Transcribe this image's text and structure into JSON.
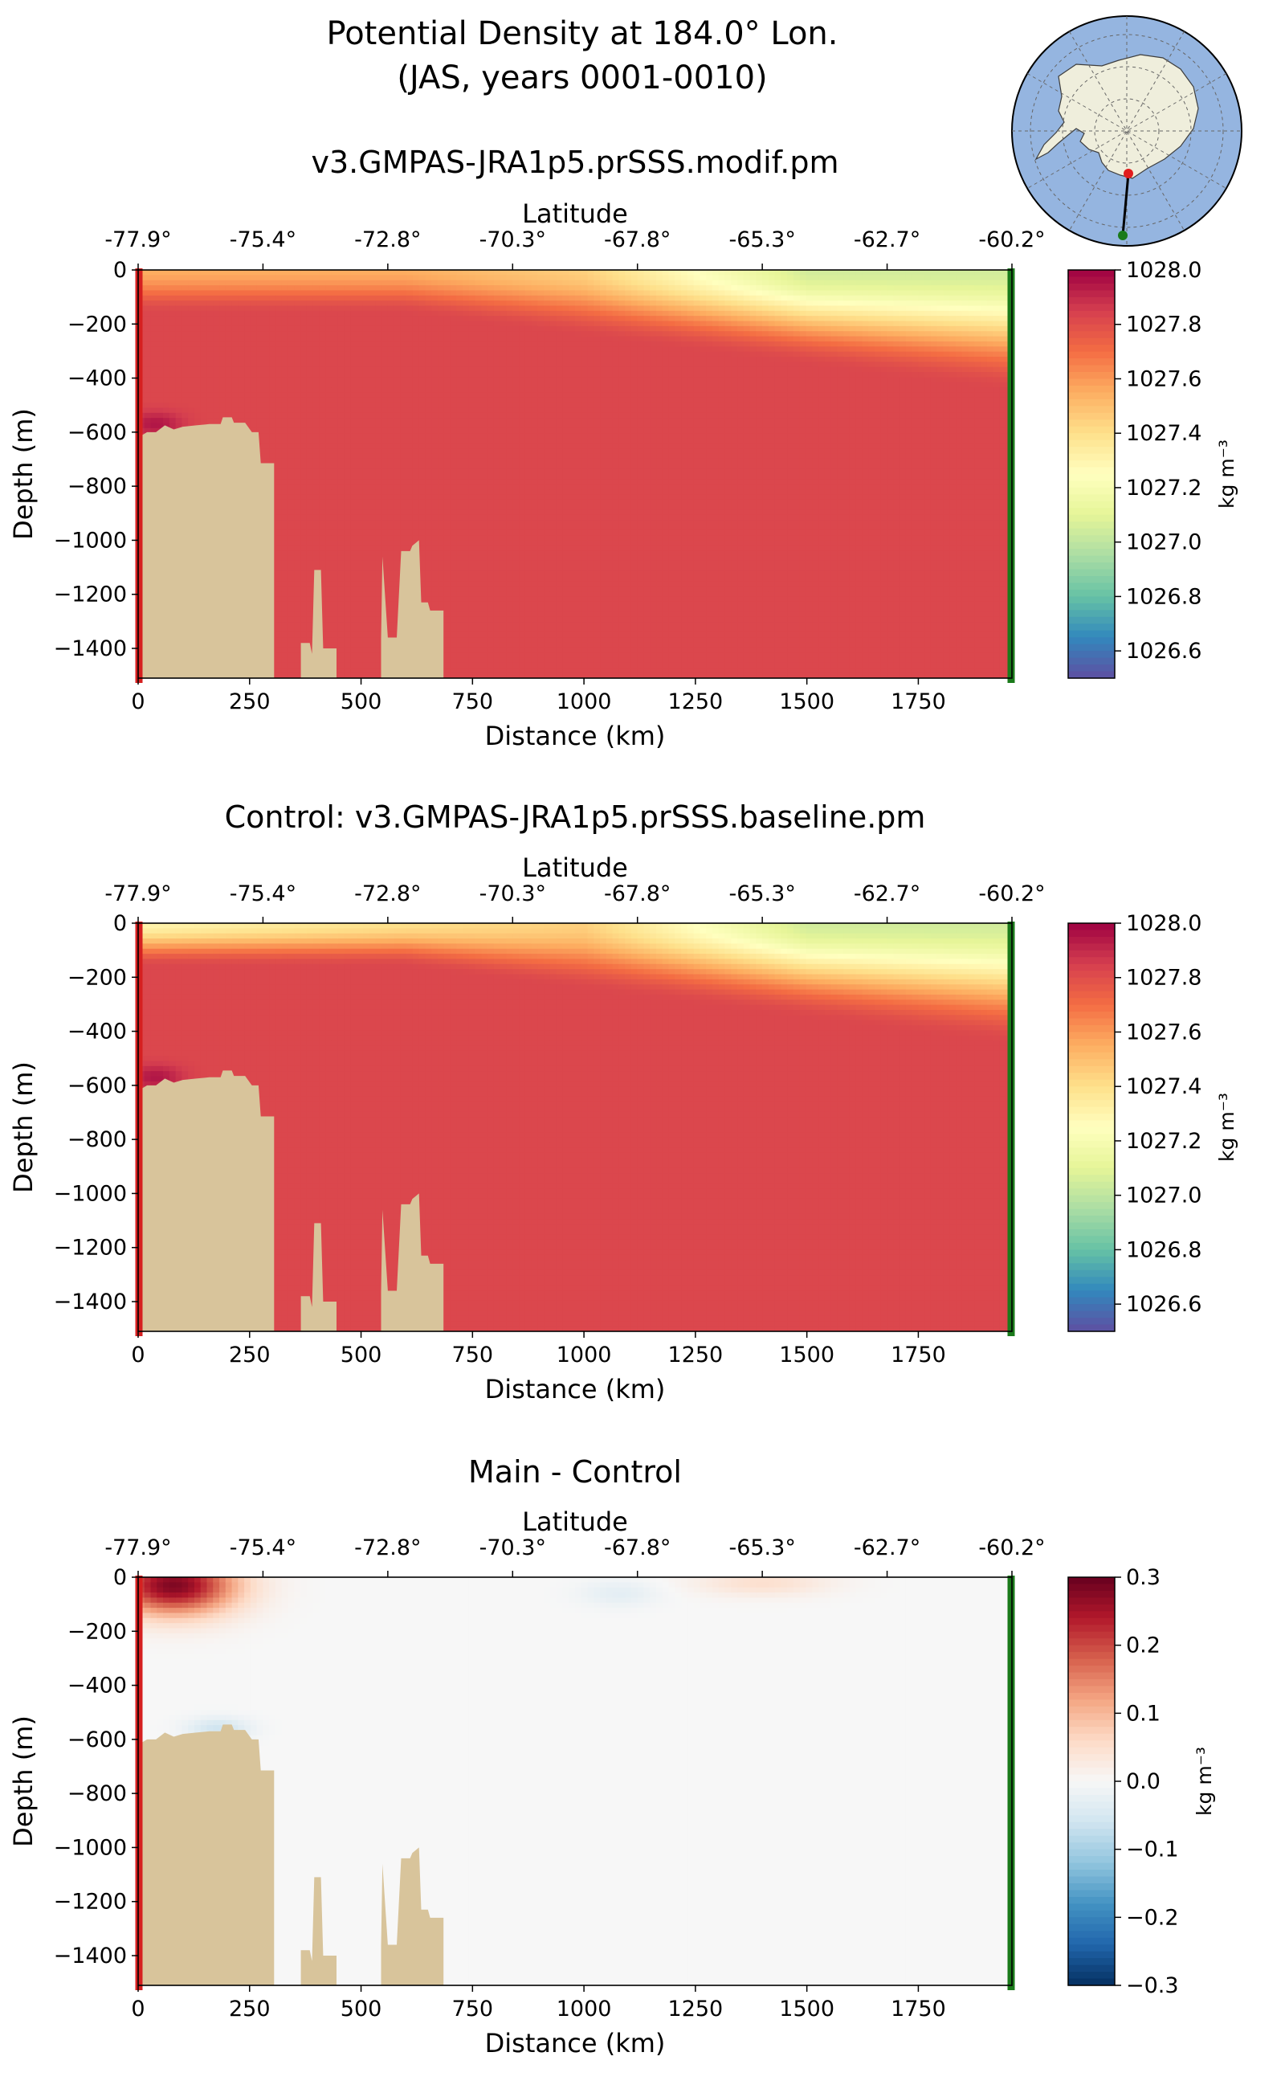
{
  "figure": {
    "title_line1": "Potential Density at 184.0° Lon.",
    "title_line2": "(JAS, years 0001-0010)",
    "land_color": "#d8c49b",
    "start_marker_color": "#d62020",
    "end_marker_color": "#1a7a1a",
    "inset_map": {
      "ocean_color": "#95b5e0",
      "land_color": "#efeedc",
      "section_start_color": "#e11d1d",
      "section_end_color": "#1a7a1a"
    }
  },
  "chart_data": [
    {
      "type": "heatmap",
      "title": "v3.GMPAS-JRA1p5.prSSS.modif.pm",
      "xlabel": "Distance (km)",
      "ylabel": "Depth (m)",
      "top_xlabel": "Latitude",
      "xlim": [
        0,
        1960
      ],
      "ylim": [
        -1510,
        0
      ],
      "x_ticks": [
        0,
        250,
        500,
        750,
        1000,
        1250,
        1500,
        1750
      ],
      "y_ticks": [
        0,
        -200,
        -400,
        -600,
        -800,
        -1000,
        -1200,
        -1400
      ],
      "lat_ticks": [
        {
          "km": 0,
          "label": "-77.9°"
        },
        {
          "km": 280,
          "label": "-75.4°"
        },
        {
          "km": 560,
          "label": "-72.8°"
        },
        {
          "km": 840,
          "label": "-70.3°"
        },
        {
          "km": 1120,
          "label": "-67.8°"
        },
        {
          "km": 1400,
          "label": "-65.3°"
        },
        {
          "km": 1680,
          "label": "-62.7°"
        },
        {
          "km": 1960,
          "label": "-60.2°"
        }
      ],
      "colorbar": {
        "label": "kg m⁻³",
        "min": 1026.5,
        "max": 1028.0,
        "ticks": [
          1026.6,
          1026.8,
          1027.0,
          1027.2,
          1027.4,
          1027.6,
          1027.8,
          1028.0
        ],
        "tick_labels": [
          "1026.6",
          "1026.8",
          "1027.0",
          "1027.2",
          "1027.4",
          "1027.6",
          "1027.8",
          "1028.0"
        ],
        "colormap": "Spectral_r"
      },
      "field": {
        "deep_value": 1027.82,
        "shelf_bottom_value": 1027.95,
        "surface_values_km": [
          [
            0,
            1027.55
          ],
          [
            600,
            1027.55
          ],
          [
            1000,
            1027.45
          ],
          [
            1250,
            1027.25
          ],
          [
            1500,
            1027.05
          ],
          [
            1960,
            1027.05
          ]
        ]
      }
    },
    {
      "type": "heatmap",
      "title": "Control: v3.GMPAS-JRA1p5.prSSS.baseline.pm",
      "xlabel": "Distance (km)",
      "ylabel": "Depth (m)",
      "top_xlabel": "Latitude",
      "xlim": [
        0,
        1960
      ],
      "ylim": [
        -1510,
        0
      ],
      "x_ticks": [
        0,
        250,
        500,
        750,
        1000,
        1250,
        1500,
        1750
      ],
      "y_ticks": [
        0,
        -200,
        -400,
        -600,
        -800,
        -1000,
        -1200,
        -1400
      ],
      "lat_ticks": [
        {
          "km": 0,
          "label": "-77.9°"
        },
        {
          "km": 280,
          "label": "-75.4°"
        },
        {
          "km": 560,
          "label": "-72.8°"
        },
        {
          "km": 840,
          "label": "-70.3°"
        },
        {
          "km": 1120,
          "label": "-67.8°"
        },
        {
          "km": 1400,
          "label": "-65.3°"
        },
        {
          "km": 1680,
          "label": "-62.7°"
        },
        {
          "km": 1960,
          "label": "-60.2°"
        }
      ],
      "colorbar": {
        "label": "kg m⁻³",
        "min": 1026.5,
        "max": 1028.0,
        "ticks": [
          1026.6,
          1026.8,
          1027.0,
          1027.2,
          1027.4,
          1027.6,
          1027.8,
          1028.0
        ],
        "tick_labels": [
          "1026.6",
          "1026.8",
          "1027.0",
          "1027.2",
          "1027.4",
          "1027.6",
          "1027.8",
          "1028.0"
        ],
        "colormap": "Spectral_r"
      },
      "field": {
        "deep_value": 1027.82,
        "shelf_bottom_value": 1027.95,
        "surface_values_km": [
          [
            0,
            1027.3
          ],
          [
            600,
            1027.4
          ],
          [
            1000,
            1027.45
          ],
          [
            1250,
            1027.25
          ],
          [
            1500,
            1027.05
          ],
          [
            1960,
            1027.05
          ]
        ]
      }
    },
    {
      "type": "heatmap",
      "title": "Main - Control",
      "xlabel": "Distance (km)",
      "ylabel": "Depth (m)",
      "top_xlabel": "Latitude",
      "xlim": [
        0,
        1960
      ],
      "ylim": [
        -1510,
        0
      ],
      "x_ticks": [
        0,
        250,
        500,
        750,
        1000,
        1250,
        1500,
        1750
      ],
      "y_ticks": [
        0,
        -200,
        -400,
        -600,
        -800,
        -1000,
        -1200,
        -1400
      ],
      "lat_ticks": [
        {
          "km": 0,
          "label": "-77.9°"
        },
        {
          "km": 280,
          "label": "-75.4°"
        },
        {
          "km": 560,
          "label": "-72.8°"
        },
        {
          "km": 840,
          "label": "-70.3°"
        },
        {
          "km": 1120,
          "label": "-67.8°"
        },
        {
          "km": 1400,
          "label": "-65.3°"
        },
        {
          "km": 1680,
          "label": "-62.7°"
        },
        {
          "km": 1960,
          "label": "-60.2°"
        }
      ],
      "colorbar": {
        "label": "kg m⁻³",
        "min": -0.3,
        "max": 0.3,
        "ticks": [
          -0.3,
          -0.2,
          -0.1,
          0.0,
          0.1,
          0.2,
          0.3
        ],
        "tick_labels": [
          "−0.3",
          "−0.2",
          "−0.1",
          "0.0",
          "0.1",
          "0.2",
          "0.3"
        ],
        "colormap": "RdBu_r"
      },
      "field": {
        "background_value": 0.0,
        "anomalies": [
          {
            "km": 80,
            "depth": -30,
            "value": 0.28,
            "sigma_km": 140,
            "sigma_depth": 110
          },
          {
            "km": 1400,
            "depth": -20,
            "value": 0.05,
            "sigma_km": 150,
            "sigma_depth": 50
          },
          {
            "km": 1080,
            "depth": -60,
            "value": -0.03,
            "sigma_km": 90,
            "sigma_depth": 50
          },
          {
            "km": 180,
            "depth": -560,
            "value": -0.06,
            "sigma_km": 70,
            "sigma_depth": 40
          }
        ]
      }
    }
  ],
  "bathymetry": {
    "land_mask_km_depth": [
      [
        0,
        -620
      ],
      [
        20,
        -600
      ],
      [
        40,
        -600
      ],
      [
        60,
        -575
      ],
      [
        80,
        -590
      ],
      [
        100,
        -580
      ],
      [
        130,
        -575
      ],
      [
        160,
        -570
      ],
      [
        185,
        -570
      ],
      [
        190,
        -545
      ],
      [
        210,
        -545
      ],
      [
        215,
        -565
      ],
      [
        240,
        -565
      ],
      [
        255,
        -600
      ],
      [
        270,
        -600
      ],
      [
        275,
        -715
      ],
      [
        305,
        -715
      ],
      [
        305,
        -1510
      ],
      [
        365,
        -1510
      ],
      [
        365,
        -1380
      ],
      [
        385,
        -1380
      ],
      [
        390,
        -1420
      ],
      [
        395,
        -1110
      ],
      [
        410,
        -1110
      ],
      [
        415,
        -1400
      ],
      [
        445,
        -1400
      ],
      [
        445,
        -1510
      ],
      [
        545,
        -1510
      ],
      [
        545,
        -1365
      ],
      [
        548,
        -1060
      ],
      [
        560,
        -1360
      ],
      [
        580,
        -1360
      ],
      [
        590,
        -1040
      ],
      [
        610,
        -1040
      ],
      [
        615,
        -1020
      ],
      [
        630,
        -1000
      ],
      [
        635,
        -1230
      ],
      [
        650,
        -1230
      ],
      [
        655,
        -1260
      ],
      [
        685,
        -1260
      ],
      [
        685,
        -1510
      ],
      [
        0,
        -1510
      ]
    ]
  }
}
